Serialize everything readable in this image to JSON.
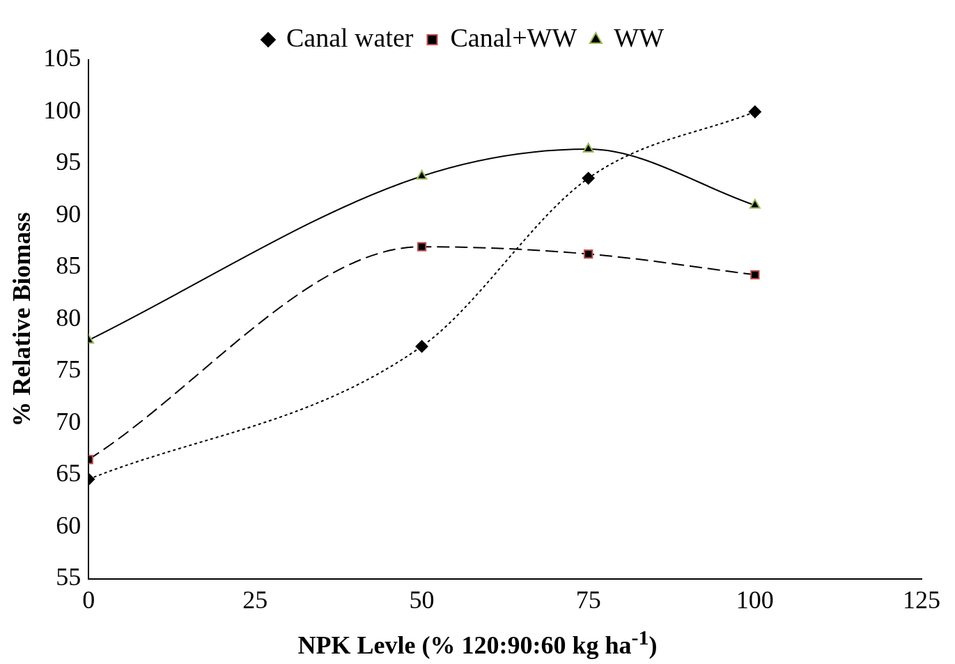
{
  "chart_data": {
    "type": "line",
    "xlabel": "NPK Levle (% 120:90:60 kg ha$^{-1}$)",
    "ylabel": "% Relative Biomass",
    "x": [
      0,
      50,
      75,
      100
    ],
    "series": [
      {
        "name": "Canal water",
        "color": "#000000",
        "marker": "diamond",
        "line_style": "dotted",
        "values": [
          64.6,
          77.4,
          93.6,
          100
        ]
      },
      {
        "name": "Canal+WW",
        "color": "#000000",
        "marker": "square",
        "line_style": "dashed",
        "values": [
          66.5,
          87,
          86.3,
          84.3
        ]
      },
      {
        "name": "WW",
        "color": "#000000",
        "marker": "triangle",
        "line_style": "solid",
        "values": [
          78,
          93.8,
          96.4,
          91
        ]
      }
    ],
    "xlim": [
      0,
      125
    ],
    "xticks": [
      0,
      25,
      50,
      75,
      100,
      125
    ],
    "ylim": [
      55,
      105
    ],
    "yticks": [
      55,
      60,
      65,
      70,
      75,
      80,
      85,
      90,
      95,
      100,
      105
    ],
    "grid": false,
    "legend": "top"
  }
}
